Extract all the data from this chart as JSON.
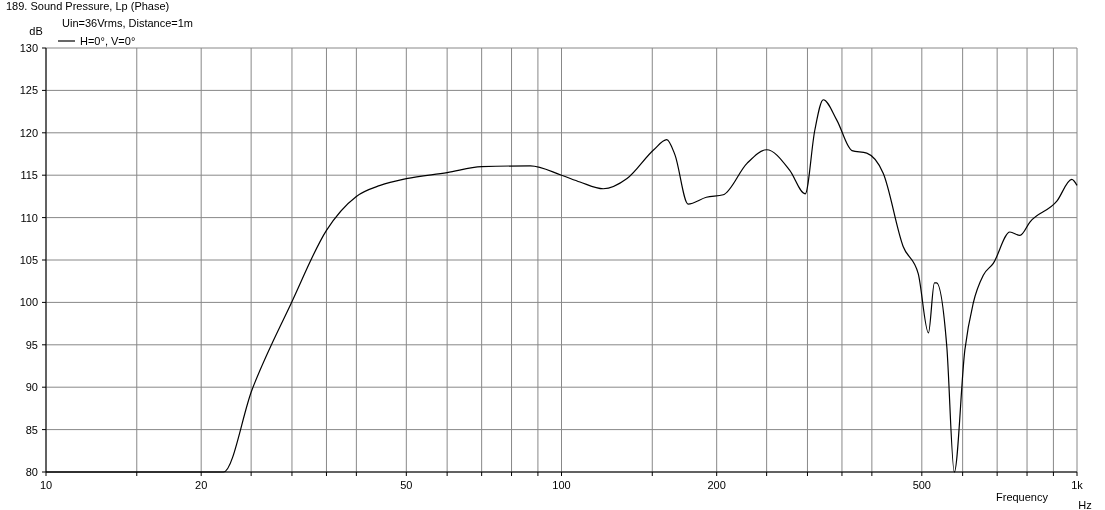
{
  "chart_data": {
    "type": "line",
    "title": "189. Sound Pressure, Lp (Phase)",
    "xlabel": "Frequency",
    "ylabel": "dB",
    "annotations": [
      "Uin=36Vrms, Distance=1m",
      "Hz"
    ],
    "log": "x",
    "grid": true,
    "legend": "top left",
    "xlim": [
      10,
      1000
    ],
    "ylim": [
      80,
      130
    ],
    "xticks": [
      10,
      {
        "value": 15,
        "label": null
      },
      20,
      {
        "value": 25,
        "label": null
      },
      {
        "value": 30,
        "label": null
      },
      {
        "value": 35,
        "label": null
      },
      {
        "value": 40,
        "label": null
      },
      50,
      {
        "value": 60,
        "label": null
      },
      {
        "value": 70,
        "label": null
      },
      {
        "value": 80,
        "label": null
      },
      {
        "value": 90,
        "label": null
      },
      100,
      {
        "value": 150,
        "label": null
      },
      200,
      {
        "value": 250,
        "label": null
      },
      {
        "value": 300,
        "label": null
      },
      {
        "value": 350,
        "label": null
      },
      {
        "value": 400,
        "label": null
      },
      500,
      {
        "value": 600,
        "label": null
      },
      {
        "value": 700,
        "label": null
      },
      {
        "value": 800,
        "label": null
      },
      {
        "value": 900,
        "label": null
      },
      {
        "value": 1000,
        "label": "1k"
      }
    ],
    "yticks": [
      80,
      85,
      90,
      95,
      100,
      105,
      110,
      115,
      120,
      125,
      130
    ],
    "x": [
      10,
      22.1,
      25.1,
      29.9,
      35,
      40,
      44.5,
      50,
      60,
      70,
      87,
      100,
      108.6,
      120.5,
      134,
      151,
      160,
      166,
      176,
      191,
      206,
      229,
      250,
      277,
      297,
      310,
      322,
      342,
      366,
      391,
      421,
      460,
      492,
      515,
      529,
      534,
      559,
      578,
      606,
      629,
      658,
      688,
      741,
      775,
      811,
      913,
      977,
      1000
    ],
    "series": [
      {
        "name": "H=0°, V=0°",
        "color": "#000000",
        "values": [
          80,
          80,
          89.7,
          99.9,
          108.5,
          112.5,
          113.8,
          114.6,
          115.3,
          116.0,
          116.1,
          115.0,
          114.2,
          113.4,
          114.6,
          118.0,
          119.2,
          117.4,
          111.6,
          112.4,
          112.7,
          116.4,
          118.0,
          115.6,
          112.8,
          120.3,
          123.9,
          121.5,
          117.9,
          117.6,
          115.2,
          106.6,
          103.4,
          96.4,
          102.3,
          102.3,
          94.8,
          80.0,
          94.4,
          99.9,
          103.2,
          104.6,
          108.3,
          107.9,
          109.5,
          111.9,
          114.5,
          113.8
        ]
      }
    ]
  }
}
